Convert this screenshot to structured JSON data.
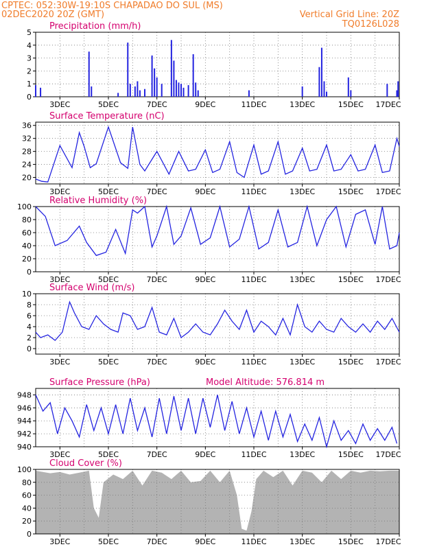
{
  "header": {
    "line1_left": "CPTEC:  052:30W-19:10S  CHAPADAO DO SUL (MS)",
    "line2_left": "02DEC2020 20Z (GMT)",
    "line2_right": "Vertical Grid Line: 20Z",
    "line3_right": "TQ0126L028"
  },
  "colors": {
    "header": "#f07c2a",
    "title": "#d4006e",
    "line": "#2323e0",
    "cloud": "#b3b3b3"
  },
  "x_ticks": [
    "3DEC",
    "5DEC",
    "7DEC",
    "9DEC",
    "11DEC",
    "13DEC",
    "15DEC",
    "17DEC"
  ],
  "chart_data": [
    {
      "type": "bar",
      "title": "Precipitation (mm/h)",
      "ylim": [
        0,
        5
      ],
      "yticks": [
        "0",
        "1",
        "2",
        "3",
        "4",
        "5"
      ],
      "grid": true,
      "x": [
        2.0,
        2.2,
        4.2,
        4.3,
        5.4,
        5.8,
        5.9,
        6.1,
        6.2,
        6.3,
        6.5,
        6.8,
        6.9,
        7.0,
        7.2,
        7.6,
        7.7,
        7.8,
        7.9,
        8.0,
        8.1,
        8.3,
        8.5,
        8.6,
        8.7,
        10.8,
        13.0,
        13.7,
        13.8,
        13.9,
        14.0,
        14.9,
        15.0,
        16.5,
        16.9,
        16.95
      ],
      "values": [
        0.9,
        0.7,
        3.5,
        0.8,
        0.3,
        4.2,
        1.0,
        0.8,
        1.2,
        0.5,
        0.6,
        3.2,
        2.2,
        1.5,
        1.0,
        4.4,
        2.8,
        1.3,
        1.1,
        1.0,
        0.7,
        0.9,
        3.3,
        1.1,
        0.5,
        0.5,
        0.8,
        2.3,
        3.8,
        1.2,
        0.4,
        1.5,
        0.5,
        1.0,
        0.5,
        1.2
      ]
    },
    {
      "type": "line",
      "title": "Surface Temperature (nC)",
      "ylim": [
        18,
        37
      ],
      "yticks": [
        "20",
        "24",
        "28",
        "32",
        "36"
      ],
      "grid": true,
      "x": [
        2.0,
        2.25,
        2.5,
        3.0,
        3.5,
        3.8,
        4.0,
        4.25,
        4.5,
        5.0,
        5.5,
        5.8,
        6.0,
        6.3,
        6.5,
        7.0,
        7.5,
        7.9,
        8.3,
        8.6,
        9.0,
        9.3,
        9.6,
        10.0,
        10.3,
        10.6,
        11.0,
        11.3,
        11.6,
        12.0,
        12.3,
        12.6,
        13.0,
        13.3,
        13.6,
        14.0,
        14.3,
        14.6,
        15.0,
        15.3,
        15.6,
        16.0,
        16.3,
        16.6,
        16.9,
        17.0
      ],
      "values": [
        19.5,
        18.8,
        18.6,
        29.8,
        23.0,
        33.8,
        29.5,
        23.0,
        24.2,
        35.5,
        24.5,
        22.8,
        35.5,
        24.0,
        22.0,
        28.0,
        21.0,
        28.0,
        22.0,
        22.5,
        28.5,
        21.5,
        22.5,
        31.0,
        21.5,
        20.0,
        30.0,
        21.0,
        22.0,
        31.0,
        21.0,
        22.0,
        29.0,
        22.0,
        22.5,
        30.0,
        22.0,
        22.5,
        27.0,
        22.0,
        22.5,
        30.0,
        21.5,
        22.0,
        32.0,
        29.5
      ]
    },
    {
      "type": "line",
      "title": "Relative Humidity (%)",
      "ylim": [
        0,
        100
      ],
      "yticks": [
        "0",
        "20",
        "40",
        "60",
        "80",
        "100"
      ],
      "grid": true,
      "x": [
        2.0,
        2.4,
        2.8,
        3.3,
        3.8,
        4.1,
        4.5,
        4.9,
        5.3,
        5.7,
        6.0,
        6.2,
        6.5,
        6.8,
        7.0,
        7.4,
        7.7,
        8.0,
        8.4,
        8.8,
        9.2,
        9.6,
        10.0,
        10.4,
        10.8,
        11.2,
        11.6,
        12.0,
        12.4,
        12.8,
        13.2,
        13.6,
        14.0,
        14.4,
        14.8,
        15.2,
        15.6,
        16.0,
        16.3,
        16.6,
        16.9,
        17.0
      ],
      "values": [
        100,
        85,
        40,
        48,
        70,
        45,
        25,
        30,
        65,
        28,
        95,
        90,
        100,
        38,
        55,
        100,
        42,
        55,
        98,
        42,
        52,
        100,
        38,
        50,
        100,
        35,
        45,
        95,
        38,
        45,
        100,
        40,
        80,
        100,
        38,
        88,
        95,
        42,
        100,
        35,
        40,
        60
      ]
    },
    {
      "type": "line",
      "title": "Surface Wind (m/s)",
      "ylim": [
        -1,
        10
      ],
      "yticks": [
        "0",
        "2",
        "4",
        "6",
        "8",
        "10"
      ],
      "grid": true,
      "x": [
        2.0,
        2.2,
        2.5,
        2.8,
        3.1,
        3.4,
        3.6,
        3.9,
        4.2,
        4.5,
        4.8,
        5.1,
        5.4,
        5.6,
        5.9,
        6.2,
        6.5,
        6.8,
        7.1,
        7.4,
        7.7,
        8.0,
        8.3,
        8.6,
        8.9,
        9.2,
        9.5,
        9.8,
        10.1,
        10.4,
        10.7,
        11.0,
        11.3,
        11.6,
        11.9,
        12.2,
        12.5,
        12.8,
        13.1,
        13.4,
        13.7,
        14.0,
        14.3,
        14.6,
        14.9,
        15.2,
        15.5,
        15.8,
        16.1,
        16.4,
        16.7,
        17.0
      ],
      "values": [
        3.0,
        2.0,
        2.5,
        1.5,
        3.0,
        8.5,
        6.5,
        4.0,
        3.5,
        6.0,
        4.5,
        3.5,
        3.0,
        6.5,
        6.0,
        3.5,
        4.0,
        7.5,
        3.0,
        2.5,
        5.5,
        2.0,
        3.0,
        4.5,
        3.0,
        2.5,
        4.5,
        7.0,
        5.0,
        3.5,
        7.0,
        3.0,
        5.0,
        4.0,
        2.5,
        5.5,
        2.5,
        8.0,
        4.0,
        3.0,
        5.0,
        3.5,
        3.0,
        5.5,
        4.0,
        3.0,
        4.5,
        3.0,
        5.0,
        3.5,
        5.5,
        3.0
      ]
    },
    {
      "type": "line",
      "title": "Surface Pressure (hPa)",
      "annotation": "Model Altitude: 576.814 m",
      "ylim": [
        940,
        949
      ],
      "yticks": [
        "940",
        "942",
        "944",
        "946",
        "948"
      ],
      "grid": true,
      "x": [
        2.0,
        2.3,
        2.6,
        2.9,
        3.2,
        3.5,
        3.8,
        4.1,
        4.4,
        4.7,
        5.0,
        5.3,
        5.6,
        5.9,
        6.2,
        6.5,
        6.8,
        7.1,
        7.4,
        7.7,
        8.0,
        8.3,
        8.6,
        8.9,
        9.2,
        9.5,
        9.8,
        10.1,
        10.4,
        10.7,
        11.0,
        11.3,
        11.6,
        11.9,
        12.2,
        12.5,
        12.8,
        13.1,
        13.4,
        13.7,
        14.0,
        14.3,
        14.6,
        14.9,
        15.2,
        15.5,
        15.8,
        16.1,
        16.4,
        16.7,
        16.9
      ],
      "values": [
        948.0,
        945.5,
        946.8,
        942.0,
        946.0,
        944.0,
        941.5,
        946.5,
        942.5,
        946.0,
        942.0,
        946.5,
        942.0,
        947.5,
        942.5,
        946.0,
        941.5,
        947.5,
        942.0,
        947.8,
        942.5,
        947.5,
        942.0,
        947.5,
        943.0,
        948.0,
        942.5,
        947.0,
        942.0,
        946.0,
        941.5,
        945.5,
        941.0,
        945.5,
        941.5,
        945.0,
        940.8,
        943.5,
        941.0,
        944.5,
        940.0,
        944.0,
        941.0,
        942.5,
        940.5,
        943.5,
        941.0,
        942.8,
        941.0,
        943.0,
        940.5
      ]
    },
    {
      "type": "area",
      "title": "Cloud Cover (%)",
      "ylim": [
        0,
        100
      ],
      "yticks": [
        "0",
        "20",
        "40",
        "60",
        "80",
        "100"
      ],
      "grid": true,
      "x": [
        2.0,
        2.3,
        2.6,
        3.0,
        3.4,
        3.8,
        4.2,
        4.4,
        4.6,
        4.8,
        5.2,
        5.6,
        6.0,
        6.4,
        6.8,
        7.2,
        7.6,
        8.0,
        8.4,
        8.8,
        9.2,
        9.6,
        10.0,
        10.3,
        10.5,
        10.7,
        10.9,
        11.1,
        11.4,
        11.8,
        12.2,
        12.6,
        13.0,
        13.4,
        13.8,
        14.2,
        14.6,
        15.0,
        15.4,
        15.8,
        16.2,
        16.6,
        17.0
      ],
      "values": [
        98,
        96,
        94,
        96,
        92,
        95,
        98,
        40,
        25,
        80,
        92,
        85,
        98,
        75,
        98,
        95,
        85,
        98,
        80,
        82,
        98,
        80,
        98,
        60,
        8,
        5,
        35,
        85,
        98,
        88,
        98,
        75,
        98,
        95,
        80,
        98,
        85,
        98,
        95,
        98,
        97,
        98,
        98
      ]
    }
  ]
}
